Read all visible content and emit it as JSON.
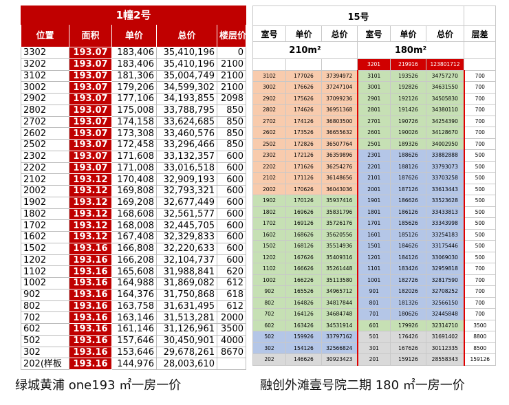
{
  "left": {
    "title": "1幢2号",
    "headers": [
      "位置",
      "面积",
      "单价",
      "总价",
      "楼层价差"
    ],
    "rows": [
      [
        "3302",
        "193.07",
        "183,406",
        "35,410,196",
        "0"
      ],
      [
        "3202",
        "193.07",
        "183,406",
        "35,410,196",
        "2100"
      ],
      [
        "3102",
        "193.07",
        "181,306",
        "35,004,749",
        "2100"
      ],
      [
        "3002",
        "193.07",
        "179,206",
        "34,599,302",
        "2100"
      ],
      [
        "2902",
        "193.07",
        "177,106",
        "34,193,855",
        "2098"
      ],
      [
        "2802",
        "193.07",
        "175,008",
        "33,788,795",
        "850"
      ],
      [
        "2702",
        "193.07",
        "174,158",
        "33,624,685",
        "850"
      ],
      [
        "2602",
        "193.07",
        "173,308",
        "33,460,576",
        "850"
      ],
      [
        "2502",
        "193.07",
        "172,458",
        "33,296,466",
        "850"
      ],
      [
        "2302",
        "193.07",
        "171,608",
        "33,132,357",
        "600"
      ],
      [
        "2202",
        "193.07",
        "171,008",
        "33,016,518",
        "600"
      ],
      [
        "2102",
        "193.12",
        "170,408",
        "32,909,193",
        "600"
      ],
      [
        "2002",
        "193.12",
        "169,808",
        "32,793,321",
        "600"
      ],
      [
        "1902",
        "193.12",
        "169,208",
        "32,677,449",
        "600"
      ],
      [
        "1802",
        "193.12",
        "168,608",
        "32,561,577",
        "600"
      ],
      [
        "1702",
        "193.12",
        "168,008",
        "32,445,705",
        "600"
      ],
      [
        "1602",
        "193.12",
        "167,408",
        "32,329,833",
        "600"
      ],
      [
        "1502",
        "193.16",
        "166,808",
        "32,220,633",
        "600"
      ],
      [
        "1202",
        "193.16",
        "166,208",
        "32,104,737",
        "600"
      ],
      [
        "1102",
        "193.16",
        "165,608",
        "31,988,841",
        "620"
      ],
      [
        "1002",
        "193.16",
        "164,988",
        "31,869,082",
        "612"
      ],
      [
        "902",
        "193.16",
        "164,376",
        "31,750,868",
        "618"
      ],
      [
        "802",
        "193.16",
        "163,758",
        "31,631,495",
        "612"
      ],
      [
        "702",
        "193.16",
        "163,146",
        "31,513,281",
        "2000"
      ],
      [
        "602",
        "193.16",
        "161,146",
        "31,126,961",
        "3500"
      ],
      [
        "502",
        "193.16",
        "157,646",
        "30,450,901",
        "4000"
      ],
      [
        "302",
        "193.16",
        "153,646",
        "29,678,261",
        "8670"
      ],
      [
        "202(样板",
        "193.16",
        "144,976",
        "28,003,610"
      ]
    ]
  },
  "right": {
    "title": "15号",
    "headers": [
      "室号",
      "单价",
      "总价",
      "室号",
      "单价",
      "总价",
      "层差"
    ],
    "areas": [
      "210m²",
      "180m²"
    ],
    "highlight": [
      "3201",
      "219916",
      "123801712"
    ],
    "rows": [
      [
        "3102",
        "177026",
        "37394972",
        "3101",
        "193526",
        "34757270",
        "700"
      ],
      [
        "3002",
        "176626",
        "37247104",
        "3001",
        "192826",
        "34631550",
        "700"
      ],
      [
        "2902",
        "175626",
        "37099236",
        "2901",
        "192126",
        "34505830",
        "700"
      ],
      [
        "2802",
        "174626",
        "36951368",
        "2801",
        "191426",
        "34380110",
        "700"
      ],
      [
        "2702",
        "174126",
        "36803500",
        "2701",
        "190726",
        "34254390",
        "700"
      ],
      [
        "2602",
        "173526",
        "36655632",
        "2601",
        "190026",
        "34128670",
        "700"
      ],
      [
        "2502",
        "172826",
        "36507764",
        "2501",
        "189326",
        "34002950",
        "700"
      ],
      [
        "2302",
        "172126",
        "36359896",
        "2301",
        "188626",
        "33882888",
        "500"
      ],
      [
        "2202",
        "171626",
        "36254276",
        "2201",
        "188126",
        "33793073",
        "500"
      ],
      [
        "2102",
        "171126",
        "36148656",
        "2101",
        "187626",
        "33703258",
        "500"
      ],
      [
        "2002",
        "170626",
        "36043036",
        "2001",
        "187126",
        "33613443",
        "500"
      ],
      [
        "1902",
        "170126",
        "35937416",
        "1901",
        "186626",
        "33523628",
        "500"
      ],
      [
        "1802",
        "169626",
        "35831796",
        "1801",
        "186126",
        "33433813",
        "500"
      ],
      [
        "1702",
        "169126",
        "35726176",
        "1701",
        "185626",
        "33343998",
        "500"
      ],
      [
        "1602",
        "168626",
        "35620556",
        "1601",
        "185126",
        "33254183",
        "500"
      ],
      [
        "1502",
        "168126",
        "35514936",
        "1501",
        "184626",
        "33175446",
        "500"
      ],
      [
        "1202",
        "167626",
        "35409316",
        "1201",
        "184126",
        "33069030",
        "500"
      ],
      [
        "1102",
        "166626",
        "35261448",
        "1101",
        "183426",
        "32959818",
        "700"
      ],
      [
        "1002",
        "166226",
        "35113580",
        "1001",
        "182726",
        "32817590",
        "700"
      ],
      [
        "902",
        "165526",
        "34965712",
        "901",
        "182026",
        "32708252",
        "700"
      ],
      [
        "802",
        "164826",
        "34817844",
        "801",
        "181326",
        "32566150",
        "700"
      ],
      [
        "702",
        "164126",
        "34684748",
        "701",
        "180626",
        "32445848",
        "700"
      ],
      [
        "602",
        "163426",
        "34531914",
        "601",
        "179926",
        "32314710",
        "3500"
      ],
      [
        "502",
        "159926",
        "33797162",
        "501",
        "176426",
        "31691402",
        "8800"
      ],
      [
        "302",
        "154126",
        "32566824",
        "301",
        "167626",
        "30112335",
        "8500"
      ],
      [
        "202",
        "146626",
        "30923423",
        "201",
        "159126",
        "28558343",
        "159126"
      ]
    ]
  },
  "captions": [
    "绿城黄浦 one193 ㎡一房一价",
    "融创外滩壹号院二期 180 ㎡一房一价"
  ]
}
